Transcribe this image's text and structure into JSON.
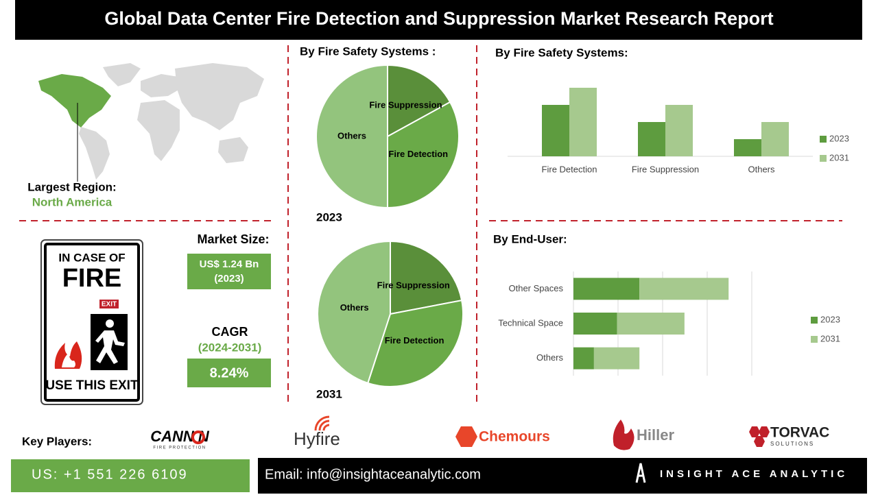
{
  "header": {
    "title": "Global Data Center Fire Detection and Suppression Market Research Report"
  },
  "region": {
    "label": "Largest Region:",
    "value": "North America"
  },
  "sign": {
    "line1": "IN CASE OF",
    "line2": "FIRE",
    "exit": "EXIT",
    "line3": "USE THIS EXIT"
  },
  "market_size": {
    "label": "Market Size:",
    "value": "US$ 1.24 Bn",
    "year": "(2023)"
  },
  "cagr": {
    "label": "CAGR",
    "period": "(2024-2031)",
    "value": "8.24%"
  },
  "pie_section_title": "By Fire Safety Systems :",
  "key_players": {
    "label": "Key Players:",
    "cannon": "CANN N",
    "cannon_sub": "FIRE PROTECTION",
    "hyfire": "Hyfire",
    "chemours": "Chemours",
    "hiller": "Hiller",
    "torvac": "TORVAC",
    "torvac_sub": "SOLUTIONS"
  },
  "footer": {
    "phone": "US: +1 551 226 6109",
    "email": "Email: info@insightaceanalytic.com",
    "brand": "INSIGHT ACE ANALYTIC"
  },
  "chart_data": [
    {
      "type": "pie",
      "title": "2023",
      "categories": [
        "Fire Suppression",
        "Fire Detection",
        "Others"
      ],
      "values": [
        17,
        33,
        50
      ],
      "colors": [
        "#5a8f3a",
        "#6aaa48",
        "#93c47d"
      ]
    },
    {
      "type": "pie",
      "title": "2031",
      "categories": [
        "Fire Suppression",
        "Fire Detection",
        "Others"
      ],
      "values": [
        22,
        33,
        45
      ],
      "colors": [
        "#5a8f3a",
        "#6aaa48",
        "#93c47d"
      ]
    },
    {
      "type": "bar",
      "orientation": "vertical",
      "title": "By Fire Safety Systems:",
      "categories": [
        "Fire Detection",
        "Fire Suppression",
        "Others"
      ],
      "series": [
        {
          "name": "2023",
          "color": "#5e9c3f",
          "values": [
            3,
            2,
            1
          ]
        },
        {
          "name": "2031",
          "color": "#a6c98e",
          "values": [
            4,
            3,
            2
          ]
        }
      ],
      "ylim": [
        0,
        5
      ],
      "legend": "right"
    },
    {
      "type": "bar",
      "orientation": "horizontal",
      "stacked": true,
      "title": "By End-User:",
      "categories": [
        "Other Spaces",
        "Technical Space",
        "Others"
      ],
      "series": [
        {
          "name": "2023",
          "color": "#5e9c3f",
          "values": [
            1.48,
            0.98,
            0.46
          ]
        },
        {
          "name": "2031",
          "color": "#a6c98e",
          "values": [
            2.0,
            1.51,
            1.02
          ]
        }
      ],
      "xlim": [
        0,
        4
      ],
      "xticks": [
        0,
        1,
        2,
        3,
        4
      ],
      "show_tick_labels": false,
      "grid": true,
      "legend": "right"
    }
  ]
}
